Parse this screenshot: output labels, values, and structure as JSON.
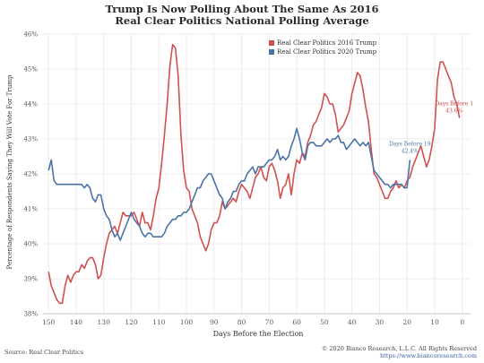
{
  "header": {
    "title_line1": "Trump Is Now Polling About The Same As 2016",
    "title_line2": "Real Clear Politics National Polling Average"
  },
  "footer": {
    "source": "Source: Real Clear Politics",
    "copyright": "© 2020 Bianco Research, L.L.C. All Rights Reserved",
    "website": "https://www.biancoresearch.com"
  },
  "colors": {
    "series_2016": "#d05050",
    "series_2020": "#4a74a8",
    "grid": "#e6e6e6",
    "axis_text": "#555555"
  },
  "chart_data": {
    "type": "line",
    "title": "Trump Is Now Polling About The Same As 2016",
    "subtitle": "Real Clear Politics National Polling Average",
    "xlabel": "Days Before the Election",
    "ylabel": "Percentage of Respondents Saying They Will Vote For Trump",
    "xlim": [
      152,
      -3
    ],
    "x_reversed": true,
    "ylim": [
      38,
      46
    ],
    "x_ticks": [
      150,
      140,
      130,
      120,
      110,
      100,
      90,
      80,
      70,
      60,
      50,
      40,
      30,
      20,
      10,
      0
    ],
    "x_tick_labels": [
      "150",
      "140",
      "130",
      "120",
      "110",
      "100",
      "90",
      "80",
      "70",
      "60",
      "50",
      "40",
      "30",
      "20",
      "10",
      "0"
    ],
    "y_ticks": [
      38,
      39,
      40,
      41,
      42,
      43,
      44,
      45,
      46
    ],
    "y_tick_labels": [
      "38%",
      "39%",
      "40%",
      "41%",
      "42%",
      "43%",
      "44%",
      "45%",
      "46%"
    ],
    "grid": true,
    "legend_position": "top-right",
    "series": [
      {
        "name": "Real Clear Politics 2016 Trump",
        "color": "#d05050",
        "x": [
          150,
          149,
          148,
          147,
          146,
          145,
          144,
          143,
          142,
          141,
          140,
          139,
          138,
          137,
          136,
          135,
          134,
          133,
          132,
          131,
          130,
          129,
          128,
          127,
          126,
          125,
          124,
          123,
          122,
          121,
          120,
          119,
          118,
          117,
          116,
          115,
          114,
          113,
          112,
          111,
          110,
          109,
          108,
          107,
          106,
          105,
          104,
          103,
          102,
          101,
          100,
          99,
          98,
          97,
          96,
          95,
          94,
          93,
          92,
          91,
          90,
          89,
          88,
          87,
          86,
          85,
          84,
          83,
          82,
          81,
          80,
          79,
          78,
          77,
          76,
          75,
          74,
          73,
          72,
          71,
          70,
          69,
          68,
          67,
          66,
          65,
          64,
          63,
          62,
          61,
          60,
          59,
          58,
          57,
          56,
          55,
          54,
          53,
          52,
          51,
          50,
          49,
          48,
          47,
          46,
          45,
          44,
          43,
          42,
          41,
          40,
          39,
          38,
          37,
          36,
          35,
          34,
          33,
          32,
          31,
          30,
          29,
          28,
          27,
          26,
          25,
          24,
          23,
          22,
          21,
          20,
          19,
          18,
          17,
          16,
          15,
          14,
          13,
          12,
          11,
          10,
          9,
          8,
          7,
          6,
          5,
          4,
          3,
          2,
          1
        ],
        "y": [
          39.2,
          38.8,
          38.6,
          38.4,
          38.3,
          38.3,
          38.8,
          39.1,
          38.9,
          39.1,
          39.2,
          39.2,
          39.4,
          39.3,
          39.5,
          39.6,
          39.6,
          39.4,
          39.0,
          39.1,
          39.6,
          40.0,
          40.3,
          40.4,
          40.5,
          40.3,
          40.6,
          40.9,
          40.8,
          40.8,
          40.8,
          40.9,
          40.7,
          40.5,
          40.9,
          40.6,
          40.6,
          40.4,
          40.8,
          41.3,
          41.6,
          42.3,
          43.1,
          44.0,
          45.1,
          45.7,
          45.6,
          44.8,
          43.1,
          42.1,
          41.6,
          41.5,
          41.0,
          40.8,
          40.6,
          40.2,
          40.0,
          39.8,
          40.0,
          40.4,
          40.6,
          40.6,
          40.8,
          41.2,
          41.0,
          41.1,
          41.2,
          41.3,
          41.2,
          41.5,
          41.7,
          41.6,
          41.5,
          41.3,
          41.6,
          41.9,
          42.0,
          42.2,
          41.9,
          41.8,
          42.2,
          42.3,
          42.1,
          41.8,
          41.3,
          41.6,
          41.7,
          42.0,
          41.4,
          42.0,
          42.4,
          42.3,
          42.6,
          42.5,
          42.9,
          43.1,
          43.4,
          43.5,
          43.7,
          43.9,
          44.3,
          44.2,
          44.0,
          44.0,
          43.7,
          43.2,
          43.3,
          43.4,
          43.6,
          43.8,
          44.3,
          44.6,
          44.9,
          44.8,
          44.4,
          43.9,
          43.5,
          42.7,
          42.0,
          41.9,
          41.7,
          41.5,
          41.3,
          41.3,
          41.5,
          41.6,
          41.8,
          41.6,
          41.7,
          41.6,
          41.8,
          41.9,
          42.2,
          42.4,
          42.6,
          42.8,
          42.5,
          42.2,
          42.4,
          42.8,
          43.3,
          44.7,
          45.2,
          45.2,
          45.0,
          44.8,
          44.6,
          44.2,
          44.0,
          43.6
        ],
        "end_label": "Days Before 1\n43.6%"
      },
      {
        "name": "Real Clear Politics 2020 Trump",
        "color": "#4a74a8",
        "x": [
          150,
          149,
          148,
          147,
          146,
          145,
          144,
          143,
          142,
          141,
          140,
          139,
          138,
          137,
          136,
          135,
          134,
          133,
          132,
          131,
          130,
          129,
          128,
          127,
          126,
          125,
          124,
          123,
          122,
          121,
          120,
          119,
          118,
          117,
          116,
          115,
          114,
          113,
          112,
          111,
          110,
          109,
          108,
          107,
          106,
          105,
          104,
          103,
          102,
          101,
          100,
          99,
          98,
          97,
          96,
          95,
          94,
          93,
          92,
          91,
          90,
          89,
          88,
          87,
          86,
          85,
          84,
          83,
          82,
          81,
          80,
          79,
          78,
          77,
          76,
          75,
          74,
          73,
          72,
          71,
          70,
          69,
          68,
          67,
          66,
          65,
          64,
          63,
          62,
          61,
          60,
          59,
          58,
          57,
          56,
          55,
          54,
          53,
          52,
          51,
          50,
          49,
          48,
          47,
          46,
          45,
          44,
          43,
          42,
          41,
          40,
          39,
          38,
          37,
          36,
          35,
          34,
          33,
          32,
          31,
          30,
          29,
          28,
          27,
          26,
          25,
          24,
          23,
          22,
          21,
          20,
          19
        ],
        "y": [
          42.1,
          42.4,
          41.8,
          41.7,
          41.7,
          41.7,
          41.7,
          41.7,
          41.7,
          41.7,
          41.7,
          41.7,
          41.7,
          41.6,
          41.7,
          41.6,
          41.3,
          41.2,
          41.4,
          41.4,
          41.0,
          40.8,
          40.7,
          40.4,
          40.2,
          40.3,
          40.1,
          40.3,
          40.5,
          40.7,
          40.9,
          40.7,
          40.6,
          40.5,
          40.3,
          40.2,
          40.3,
          40.3,
          40.2,
          40.2,
          40.2,
          40.2,
          40.3,
          40.5,
          40.6,
          40.7,
          40.7,
          40.8,
          40.8,
          40.9,
          40.9,
          41.0,
          41.2,
          41.4,
          41.6,
          41.6,
          41.8,
          41.9,
          42.0,
          42.0,
          41.8,
          41.6,
          41.4,
          41.3,
          41.0,
          41.2,
          41.3,
          41.5,
          41.5,
          41.7,
          41.8,
          41.8,
          42.0,
          42.1,
          42.2,
          42.0,
          42.2,
          42.2,
          42.2,
          42.3,
          42.4,
          42.4,
          42.5,
          42.7,
          42.4,
          42.5,
          42.4,
          42.5,
          42.8,
          43.0,
          43.3,
          43.0,
          42.6,
          42.4,
          42.8,
          42.9,
          42.9,
          42.8,
          42.8,
          42.8,
          42.9,
          43.0,
          42.9,
          43.0,
          43.0,
          43.1,
          42.9,
          42.9,
          42.7,
          42.8,
          42.9,
          43.0,
          42.9,
          42.8,
          42.9,
          42.8,
          42.9,
          42.5,
          42.1,
          42.0,
          41.9,
          41.8,
          41.7,
          41.7,
          41.6,
          41.7,
          41.7,
          41.7,
          41.7,
          41.6,
          41.6,
          42.4
        ],
        "end_label": "Days Before 19\n42.4%"
      }
    ]
  }
}
